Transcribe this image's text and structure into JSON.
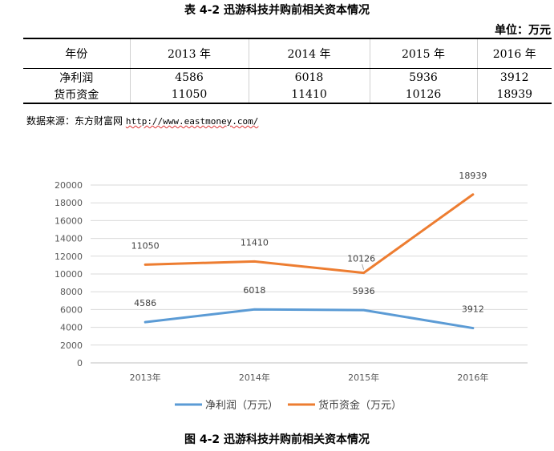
{
  "table_title": "表 4-2 迅游科技并购前相关资本情况",
  "unit_label": "单位：万元",
  "table": {
    "headers": [
      "年份",
      "2013 年",
      "2014 年",
      "2015 年",
      "2016 年"
    ],
    "rows": [
      [
        "净利润",
        "4586",
        "6018",
        "5936",
        "3912"
      ],
      [
        "货币资金",
        "11050",
        "11410",
        "10126",
        "18939"
      ]
    ]
  },
  "source": {
    "prefix": "数据来源：东方财富网 ",
    "url": "http://www.eastmoney.com/"
  },
  "figure_caption": "图 4-2 迅游科技并购前相关资本情况",
  "chart_data": {
    "type": "line",
    "categories": [
      "2013年",
      "2014年",
      "2015年",
      "2016年"
    ],
    "series": [
      {
        "name": "净利润（万元）",
        "values": [
          4586,
          6018,
          5936,
          3912
        ],
        "color": "#5b9bd5"
      },
      {
        "name": "货币资金（万元）",
        "values": [
          11050,
          11410,
          10126,
          18939
        ],
        "color": "#ed7d31"
      }
    ],
    "ylim": [
      0,
      20000
    ],
    "yticks": [
      0,
      2000,
      4000,
      6000,
      8000,
      10000,
      12000,
      14000,
      16000,
      18000,
      20000
    ],
    "grid": true,
    "legend_position": "bottom",
    "data_labels": true
  }
}
